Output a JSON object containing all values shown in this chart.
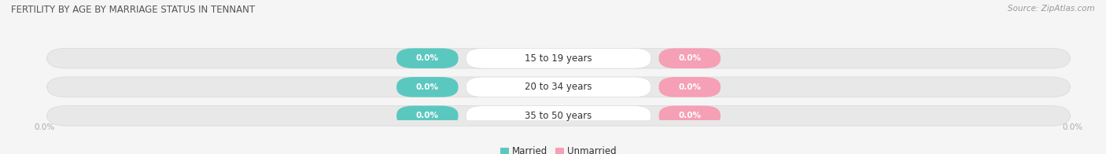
{
  "title": "FERTILITY BY AGE BY MARRIAGE STATUS IN TENNANT",
  "source": "Source: ZipAtlas.com",
  "categories": [
    "15 to 19 years",
    "20 to 34 years",
    "35 to 50 years"
  ],
  "married_values": [
    0.0,
    0.0,
    0.0
  ],
  "unmarried_values": [
    0.0,
    0.0,
    0.0
  ],
  "married_color": "#5bc8c0",
  "unmarried_color": "#f5a0b5",
  "bar_bg_color": "#e8e8e8",
  "bar_bg_color2": "#f0f0f0",
  "bar_outline_color": "#d8d8d8",
  "title_color": "#555555",
  "value_label_color": "#ffffff",
  "category_label_color": "#333333",
  "axis_label_color": "#aaaaaa",
  "legend_married": "Married",
  "legend_unmarried": "Unmarried",
  "figsize": [
    14.06,
    1.96
  ],
  "dpi": 100,
  "background_color": "#f5f5f5",
  "source_color": "#999999",
  "title_fontsize": 8.5,
  "source_fontsize": 7.5,
  "axis_tick_fontsize": 7.5,
  "category_fontsize": 8.5,
  "value_fontsize": 7.5,
  "legend_fontsize": 8.5
}
